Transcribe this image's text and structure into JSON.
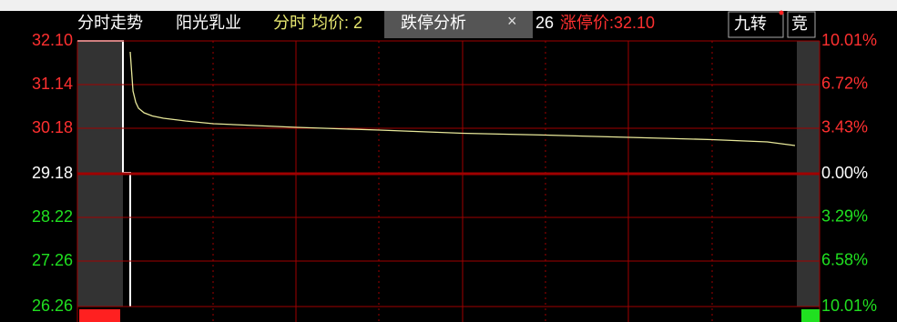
{
  "header": {
    "view": "分时走势",
    "stock": "阳光乳业",
    "mode": "分时",
    "avg_label": "均价: 2",
    "tab": "跌停分析",
    "tab_close": "×",
    "partial": "26",
    "limit_up": "涨停价:32.10",
    "jiuzhuan": "九转",
    "jing": "竞"
  },
  "chart_data": {
    "type": "line",
    "x": [
      0,
      1,
      2,
      3,
      5,
      8,
      12,
      20,
      30,
      45,
      60,
      90,
      120,
      150,
      180,
      210,
      230,
      240
    ],
    "xlim": [
      0,
      240
    ],
    "series": [
      {
        "color": "#e8e89a",
        "values": [
          31.86,
          31.0,
          30.75,
          30.62,
          30.52,
          30.45,
          30.4,
          30.34,
          30.28,
          30.24,
          30.2,
          30.14,
          30.07,
          30.03,
          29.98,
          29.93,
          29.88,
          29.8
        ]
      },
      {
        "color": "#ffffff",
        "values": [
          26.26,
          null,
          null,
          null,
          null,
          null,
          null,
          null,
          null,
          null,
          null,
          null,
          null,
          null,
          null,
          null,
          null,
          26.26
        ]
      }
    ],
    "ylim": [
      26.26,
      32.1
    ],
    "yticks": [
      {
        "value": 32.1,
        "label": "32.10"
      },
      31.14,
      30.18,
      29.18,
      28.22,
      27.26,
      26.26
    ],
    "y2lim": [
      -10.01,
      10.01
    ],
    "y2ticks": [
      {
        "value": 10.01,
        "label": "10.01%"
      },
      {
        "value": 6.72,
        "label": "6.72%"
      },
      {
        "value": 3.43,
        "label": "3.43%"
      },
      {
        "value": 0,
        "label": "0.00%"
      },
      {
        "value": -3.29,
        "label": "3.29%"
      },
      {
        "value": -6.58,
        "label": "6.58%"
      },
      {
        "value": -10.01,
        "label": "10.01%"
      }
    ],
    "up_color": "#ff3030",
    "down_color": "#20e020",
    "flat_color": "#ffffff",
    "grid_color": "#a00000"
  }
}
